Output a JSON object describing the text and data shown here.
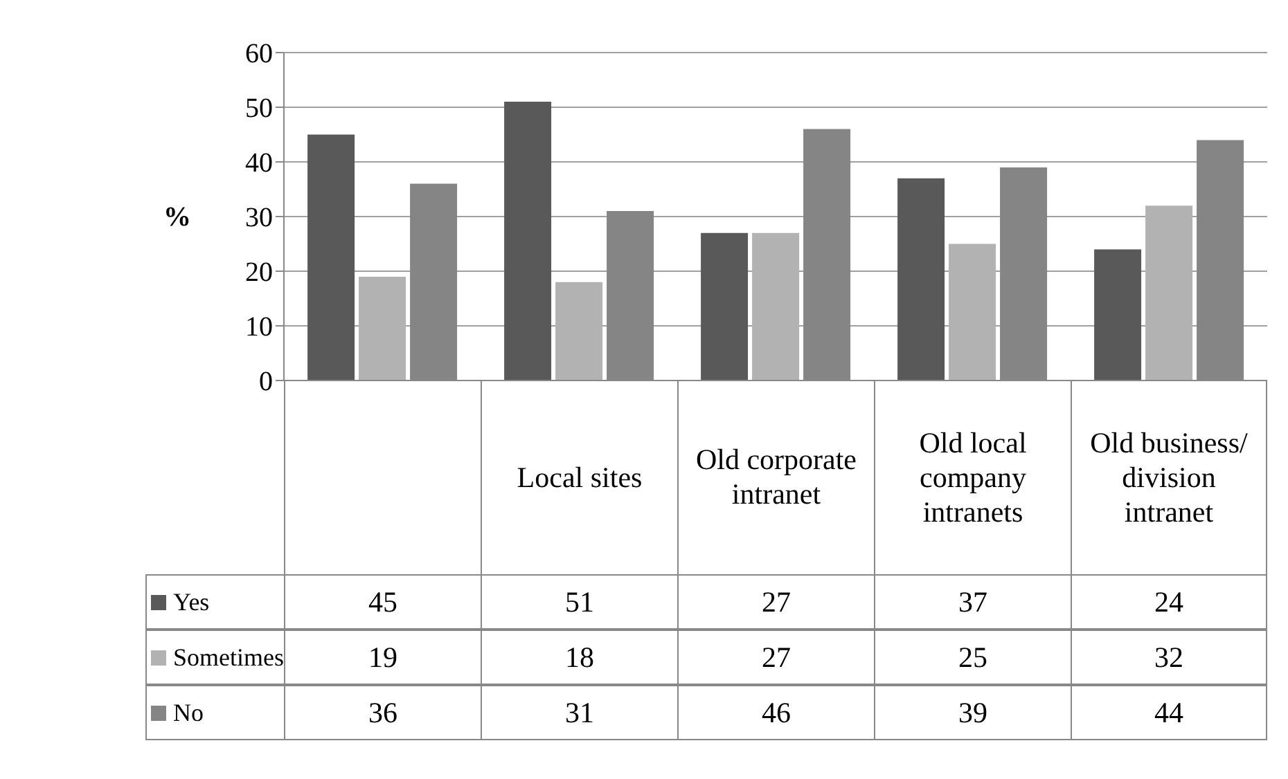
{
  "chart_data": {
    "type": "bar",
    "ylabel": "%",
    "categories": [
      null,
      "Local sites",
      "Old corporate intranet",
      "Old local company intranets",
      "Old business/ division intranet"
    ],
    "series": [
      {
        "name": "Yes",
        "color": "#595959",
        "values": [
          45,
          51,
          27,
          37,
          24
        ]
      },
      {
        "name": "Sometimes",
        "color": "#b2b2b2",
        "values": [
          19,
          18,
          27,
          25,
          32
        ]
      },
      {
        "name": "No",
        "color": "#858585",
        "values": [
          36,
          31,
          46,
          39,
          44
        ]
      }
    ],
    "ylim": [
      0,
      60
    ],
    "yticks": [
      0,
      10,
      20,
      30,
      40,
      50,
      60
    ],
    "grid": "y",
    "legend": "bottom",
    "data_labels": true
  }
}
